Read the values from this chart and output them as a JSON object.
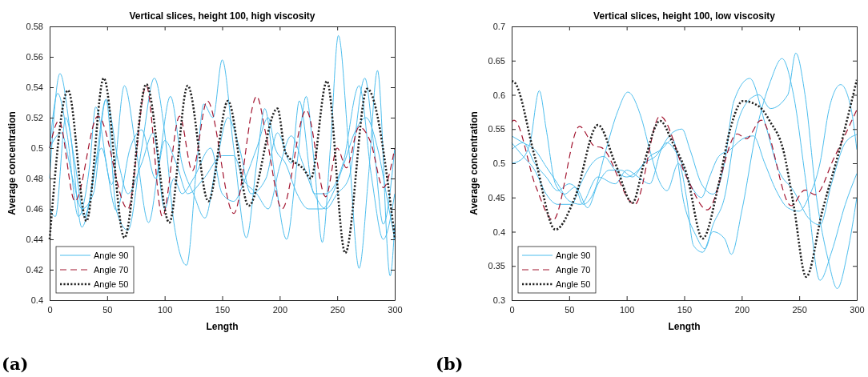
{
  "chart_data": [
    {
      "type": "line",
      "title": "Vertical slices, height 100, high viscosity",
      "xlabel": "Length",
      "ylabel": "Average concentration",
      "xlim": [
        0,
        300
      ],
      "xticks": [
        0,
        50,
        100,
        150,
        200,
        250,
        300
      ],
      "ylim": [
        0.4,
        0.58
      ],
      "yticks": [
        0.4,
        0.42,
        0.44,
        0.46,
        0.48,
        0.5,
        0.52,
        0.54,
        0.56,
        0.58
      ],
      "legend": "bottom left",
      "annotations": [
        "(a)"
      ],
      "series": [
        {
          "name": "Angle 90",
          "color": "#4dbeee",
          "line_style": "solid",
          "x": [
            0,
            9,
            18,
            28,
            40,
            49,
            58,
            68,
            80,
            91,
            100,
            108,
            119,
            128,
            134,
            142,
            150,
            160,
            171,
            180,
            187,
            196,
            206,
            215,
            223,
            230,
            237,
            244,
            251,
            260,
            269,
            277,
            285,
            296,
            300
          ],
          "values": [
            0.48,
            0.549,
            0.51,
            0.448,
            0.49,
            0.532,
            0.459,
            0.446,
            0.5,
            0.546,
            0.51,
            0.451,
            0.423,
            0.49,
            0.529,
            0.52,
            0.558,
            0.5,
            0.441,
            0.49,
            0.526,
            0.48,
            0.44,
            0.49,
            0.534,
            0.49,
            0.438,
            0.5,
            0.574,
            0.5,
            0.421,
            0.48,
            0.551,
            0.416,
            0.45
          ]
        },
        {
          "color": "#4dbeee",
          "line_style": "solid",
          "x": [
            0,
            7,
            15,
            25,
            35,
            40,
            54,
            65,
            75,
            86,
            95,
            105,
            115,
            125,
            135,
            145,
            155,
            165,
            175,
            188,
            198,
            210,
            217,
            230,
            240,
            255,
            269,
            280,
            290,
            300
          ],
          "values": [
            0.5,
            0.536,
            0.51,
            0.455,
            0.49,
            0.527,
            0.476,
            0.541,
            0.5,
            0.451,
            0.49,
            0.534,
            0.49,
            0.47,
            0.454,
            0.49,
            0.52,
            0.5,
            0.47,
            0.48,
            0.51,
            0.49,
            0.531,
            0.47,
            0.47,
            0.49,
            0.541,
            0.48,
            0.44,
            0.47
          ]
        },
        {
          "color": "#4dbeee",
          "line_style": "solid",
          "x": [
            0,
            5,
            14,
            22,
            30,
            45,
            58,
            70,
            80,
            92,
            100,
            110,
            120,
            134,
            150,
            160,
            168,
            180,
            190,
            200,
            210,
            220,
            230,
            240,
            250,
            260,
            274,
            282,
            290,
            300
          ],
          "values": [
            0.46,
            0.455,
            0.52,
            0.49,
            0.455,
            0.5,
            0.459,
            0.5,
            0.512,
            0.48,
            0.505,
            0.49,
            0.47,
            0.48,
            0.495,
            0.495,
            0.48,
            0.47,
            0.46,
            0.488,
            0.508,
            0.49,
            0.47,
            0.46,
            0.47,
            0.48,
            0.546,
            0.5,
            0.45,
            0.5
          ]
        },
        {
          "color": "#4dbeee",
          "line_style": "solid",
          "x": [
            0,
            10,
            20,
            28,
            38,
            49,
            60,
            68,
            80,
            90,
            100,
            108,
            115,
            125,
            140,
            150,
            160,
            170,
            180,
            190,
            196,
            205,
            215,
            225,
            237,
            246,
            256,
            265,
            275,
            285,
            295,
            300
          ],
          "values": [
            0.5,
            0.51,
            0.48,
            0.46,
            0.47,
            0.532,
            0.49,
            0.47,
            0.49,
            0.51,
            0.46,
            0.48,
            0.47,
            0.48,
            0.5,
            0.47,
            0.465,
            0.48,
            0.5,
            0.52,
            0.5,
            0.49,
            0.47,
            0.46,
            0.46,
            0.47,
            0.49,
            0.51,
            0.52,
            0.5,
            0.46,
            0.44
          ]
        },
        {
          "name": "Angle 70",
          "color": "#a2142f",
          "line_style": "dashed",
          "x": [
            0,
            8,
            22,
            42,
            68,
            84,
            98,
            113,
            124,
            137,
            160,
            180,
            188,
            202,
            223,
            240,
            250,
            258,
            269,
            279,
            290,
            300
          ],
          "values": [
            0.5,
            0.518,
            0.465,
            0.521,
            0.46,
            0.541,
            0.455,
            0.521,
            0.485,
            0.531,
            0.457,
            0.534,
            0.509,
            0.46,
            0.525,
            0.468,
            0.5,
            0.487,
            0.514,
            0.504,
            0.474,
            0.5
          ]
        },
        {
          "name": "Angle 50",
          "color": "#222222",
          "line_style": "dotted",
          "x": [
            0,
            16,
            32,
            47,
            65,
            84,
            104,
            120,
            138,
            155,
            173,
            198,
            205,
            221,
            227,
            241,
            257,
            276,
            300
          ],
          "values": [
            0.44,
            0.538,
            0.452,
            0.546,
            0.441,
            0.542,
            0.451,
            0.541,
            0.465,
            0.531,
            0.462,
            0.526,
            0.497,
            0.486,
            0.48,
            0.544,
            0.431,
            0.539,
            0.441
          ]
        }
      ]
    },
    {
      "type": "line",
      "title": "Vertical slices, height 100, low viscosity",
      "xlabel": "Length",
      "ylabel": "Average concentration",
      "xlim": [
        0,
        300
      ],
      "xticks": [
        0,
        50,
        100,
        150,
        200,
        250,
        300
      ],
      "ylim": [
        0.3,
        0.7
      ],
      "yticks": [
        0.3,
        0.35,
        0.4,
        0.45,
        0.5,
        0.55,
        0.6,
        0.65,
        0.7
      ],
      "legend": "bottom left",
      "annotations": [
        "(b)"
      ],
      "series": [
        {
          "name": "Angle 90",
          "color": "#4dbeee",
          "line_style": "solid",
          "x": [
            0,
            10,
            20,
            30,
            40,
            50,
            60,
            75,
            90,
            100,
            110,
            120,
            130,
            140,
            148,
            155,
            165,
            175,
            185,
            193,
            207,
            220,
            232,
            245,
            258,
            268,
            278,
            290,
            300
          ],
          "values": [
            0.54,
            0.53,
            0.52,
            0.495,
            0.47,
            0.445,
            0.44,
            0.48,
            0.47,
            0.49,
            0.48,
            0.47,
            0.52,
            0.545,
            0.55,
            0.52,
            0.47,
            0.455,
            0.5,
            0.59,
            0.624,
            0.56,
            0.49,
            0.46,
            0.42,
            0.41,
            0.47,
            0.53,
            0.542
          ]
        },
        {
          "color": "#4dbeee",
          "line_style": "solid",
          "x": [
            0,
            8,
            16,
            24,
            30,
            38,
            46,
            55,
            62,
            72,
            82,
            92,
            101,
            112,
            120,
            128,
            135,
            145,
            152,
            158,
            166,
            175,
            185,
            191,
            200,
            213,
            225,
            235,
            245,
            256,
            268,
            278,
            290,
            300
          ],
          "values": [
            0.5,
            0.505,
            0.53,
            0.606,
            0.55,
            0.47,
            0.455,
            0.465,
            0.44,
            0.46,
            0.52,
            0.575,
            0.604,
            0.57,
            0.52,
            0.475,
            0.46,
            0.5,
            0.45,
            0.38,
            0.37,
            0.4,
            0.39,
            0.367,
            0.43,
            0.55,
            0.62,
            0.653,
            0.6,
            0.47,
            0.329,
            0.37,
            0.44,
            0.485
          ]
        },
        {
          "color": "#4dbeee",
          "line_style": "solid",
          "x": [
            0,
            10,
            20,
            30,
            40,
            52,
            60,
            70,
            80,
            90,
            100,
            110,
            120,
            130,
            140,
            150,
            160,
            168,
            175,
            185,
            195,
            205,
            215,
            225,
            240,
            247,
            255,
            265,
            275,
            283,
            292,
            300
          ],
          "values": [
            0.53,
            0.51,
            0.49,
            0.455,
            0.44,
            0.44,
            0.47,
            0.5,
            0.51,
            0.49,
            0.48,
            0.49,
            0.51,
            0.52,
            0.535,
            0.44,
            0.395,
            0.375,
            0.41,
            0.45,
            0.55,
            0.59,
            0.6,
            0.58,
            0.6,
            0.661,
            0.6,
            0.45,
            0.36,
            0.317,
            0.37,
            0.45
          ]
        },
        {
          "color": "#4dbeee",
          "line_style": "solid",
          "x": [
            0,
            10,
            20,
            30,
            40,
            50,
            58,
            66,
            75,
            85,
            95,
            105,
            115,
            125,
            135,
            145,
            155,
            165,
            172,
            180,
            190,
            200,
            210,
            220,
            230,
            240,
            250,
            258,
            268,
            276,
            286,
            295,
            300
          ],
          "values": [
            0.52,
            0.53,
            0.5,
            0.48,
            0.46,
            0.47,
            0.46,
            0.435,
            0.47,
            0.49,
            0.49,
            0.48,
            0.5,
            0.51,
            0.53,
            0.51,
            0.47,
            0.45,
            0.48,
            0.51,
            0.52,
            0.535,
            0.54,
            0.5,
            0.46,
            0.435,
            0.43,
            0.45,
            0.5,
            0.58,
            0.615,
            0.58,
            0.52
          ]
        },
        {
          "name": "Angle 70",
          "color": "#a2142f",
          "line_style": "dashed",
          "x": [
            0,
            2,
            21,
            36,
            59,
            72,
            78,
            107,
            129,
            152,
            170,
            196,
            204,
            217,
            243,
            255,
            264,
            280,
            300
          ],
          "values": [
            0.56,
            0.563,
            0.466,
            0.417,
            0.554,
            0.525,
            0.523,
            0.44,
            0.569,
            0.48,
            0.432,
            0.543,
            0.536,
            0.563,
            0.438,
            0.461,
            0.454,
            0.507,
            0.578
          ]
        },
        {
          "name": "Angle 50",
          "color": "#222222",
          "line_style": "dotted",
          "x": [
            0,
            2,
            20,
            38,
            55,
            75,
            90,
            105,
            115,
            129,
            140,
            152,
            166,
            180,
            190,
            201,
            215,
            225,
            236,
            245,
            256,
            270,
            285,
            300
          ],
          "values": [
            0.62,
            0.619,
            0.51,
            0.403,
            0.45,
            0.556,
            0.5,
            0.442,
            0.5,
            0.562,
            0.53,
            0.485,
            0.39,
            0.47,
            0.55,
            0.591,
            0.583,
            0.56,
            0.52,
            0.44,
            0.334,
            0.43,
            0.52,
            0.622
          ]
        }
      ]
    }
  ]
}
